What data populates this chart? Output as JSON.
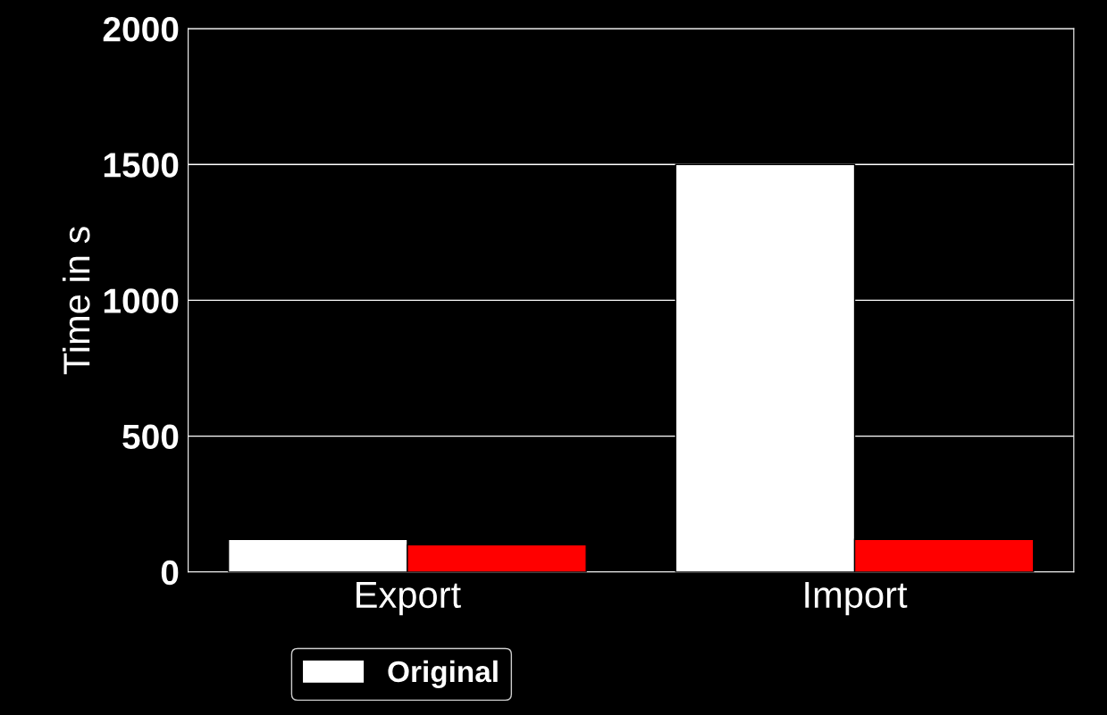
{
  "chart_data": {
    "type": "bar",
    "ylabel": "Time in s",
    "categories": [
      "Export",
      "Import"
    ],
    "series": [
      {
        "name": "Original",
        "color": "#ffffff",
        "values": [
          120,
          1500
        ]
      },
      {
        "color": "#ff0000",
        "values": [
          100,
          120
        ]
      }
    ],
    "ylim": [
      0,
      2000
    ],
    "yticks": [
      0,
      500,
      1000,
      1500,
      2000
    ],
    "grid": "y",
    "legend": "bottom left"
  }
}
